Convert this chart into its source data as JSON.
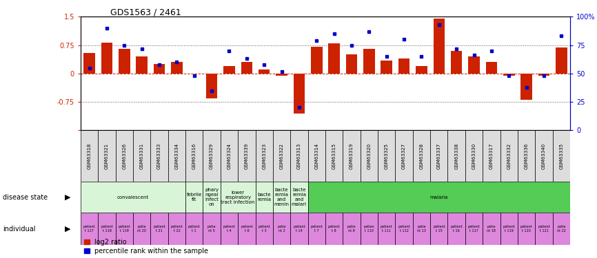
{
  "title": "GDS1563 / 2461",
  "samples": [
    "GSM63318",
    "GSM63321",
    "GSM63326",
    "GSM63331",
    "GSM63333",
    "GSM63334",
    "GSM63316",
    "GSM63329",
    "GSM63324",
    "GSM63339",
    "GSM63323",
    "GSM63322",
    "GSM63313",
    "GSM63314",
    "GSM63315",
    "GSM63319",
    "GSM63320",
    "GSM63325",
    "GSM63327",
    "GSM63328",
    "GSM63337",
    "GSM63338",
    "GSM63330",
    "GSM63317",
    "GSM63332",
    "GSM63336",
    "GSM63340",
    "GSM63335"
  ],
  "log2_ratio": [
    0.55,
    0.82,
    0.65,
    0.45,
    0.25,
    0.3,
    0.0,
    -0.65,
    0.2,
    0.3,
    0.1,
    -0.05,
    -1.05,
    0.7,
    0.8,
    0.5,
    0.65,
    0.35,
    0.4,
    0.2,
    1.45,
    0.6,
    0.45,
    0.3,
    -0.05,
    -0.7,
    -0.05,
    0.68
  ],
  "percentile": [
    55,
    90,
    75,
    72,
    58,
    60,
    48,
    35,
    70,
    63,
    58,
    52,
    20,
    79,
    85,
    75,
    87,
    65,
    80,
    65,
    93,
    72,
    66,
    70,
    48,
    38,
    48,
    83
  ],
  "disease_state_groups": [
    {
      "label": "convalescent",
      "start": 0,
      "end": 6,
      "color": "#d8f5d8"
    },
    {
      "label": "febrile\nfit",
      "start": 6,
      "end": 7,
      "color": "#d8f5d8"
    },
    {
      "label": "phary\nngeal\ninfect\non",
      "start": 7,
      "end": 8,
      "color": "#d8f5d8"
    },
    {
      "label": "lower\nrespiratory\ntract infection",
      "start": 8,
      "end": 10,
      "color": "#d8f5d8"
    },
    {
      "label": "bacte\nremia",
      "start": 10,
      "end": 11,
      "color": "#d8f5d8"
    },
    {
      "label": "bacte\nremia\nand\nmenin",
      "start": 11,
      "end": 12,
      "color": "#d8f5d8"
    },
    {
      "label": "bacte\nremia\nand\nmalari",
      "start": 12,
      "end": 13,
      "color": "#d8f5d8"
    },
    {
      "label": "malaria",
      "start": 13,
      "end": 28,
      "color": "#55cc55"
    }
  ],
  "individual_labels": [
    "patient\nt 117",
    "patient\nt 118",
    "patient\nt 119",
    "patie\nnt 20",
    "patient\nt 21",
    "patient\nt 22",
    "patient\nt 1",
    "patie\nnt 5",
    "patient\nt 4",
    "patient\nt 6",
    "patient\nt 3",
    "patie\nnt 2",
    "patient\nt 14",
    "patient\nt 7",
    "patient\nt 8",
    "patie\nnt 9",
    "patien\nt 110",
    "patient\nt 111",
    "patient\nt 112",
    "patie\nnt 13",
    "patient\nt 15",
    "patient\nt 16",
    "patient\nt 117",
    "patie\nnt 18",
    "patient\nt 119",
    "patient\nt 120",
    "patient\nt 121",
    "patie\nnt 22"
  ],
  "bar_color": "#cc2200",
  "dot_color": "#0000cc",
  "left_ylim": [
    -1.5,
    1.5
  ],
  "right_ylim": [
    0,
    100
  ],
  "left_yticks": [
    -1.5,
    -0.75,
    0,
    0.75,
    1.5
  ],
  "right_yticks": [
    0,
    25,
    50,
    75,
    100
  ],
  "sample_box_color": "#dddddd",
  "indiv_color": "#dd88dd"
}
